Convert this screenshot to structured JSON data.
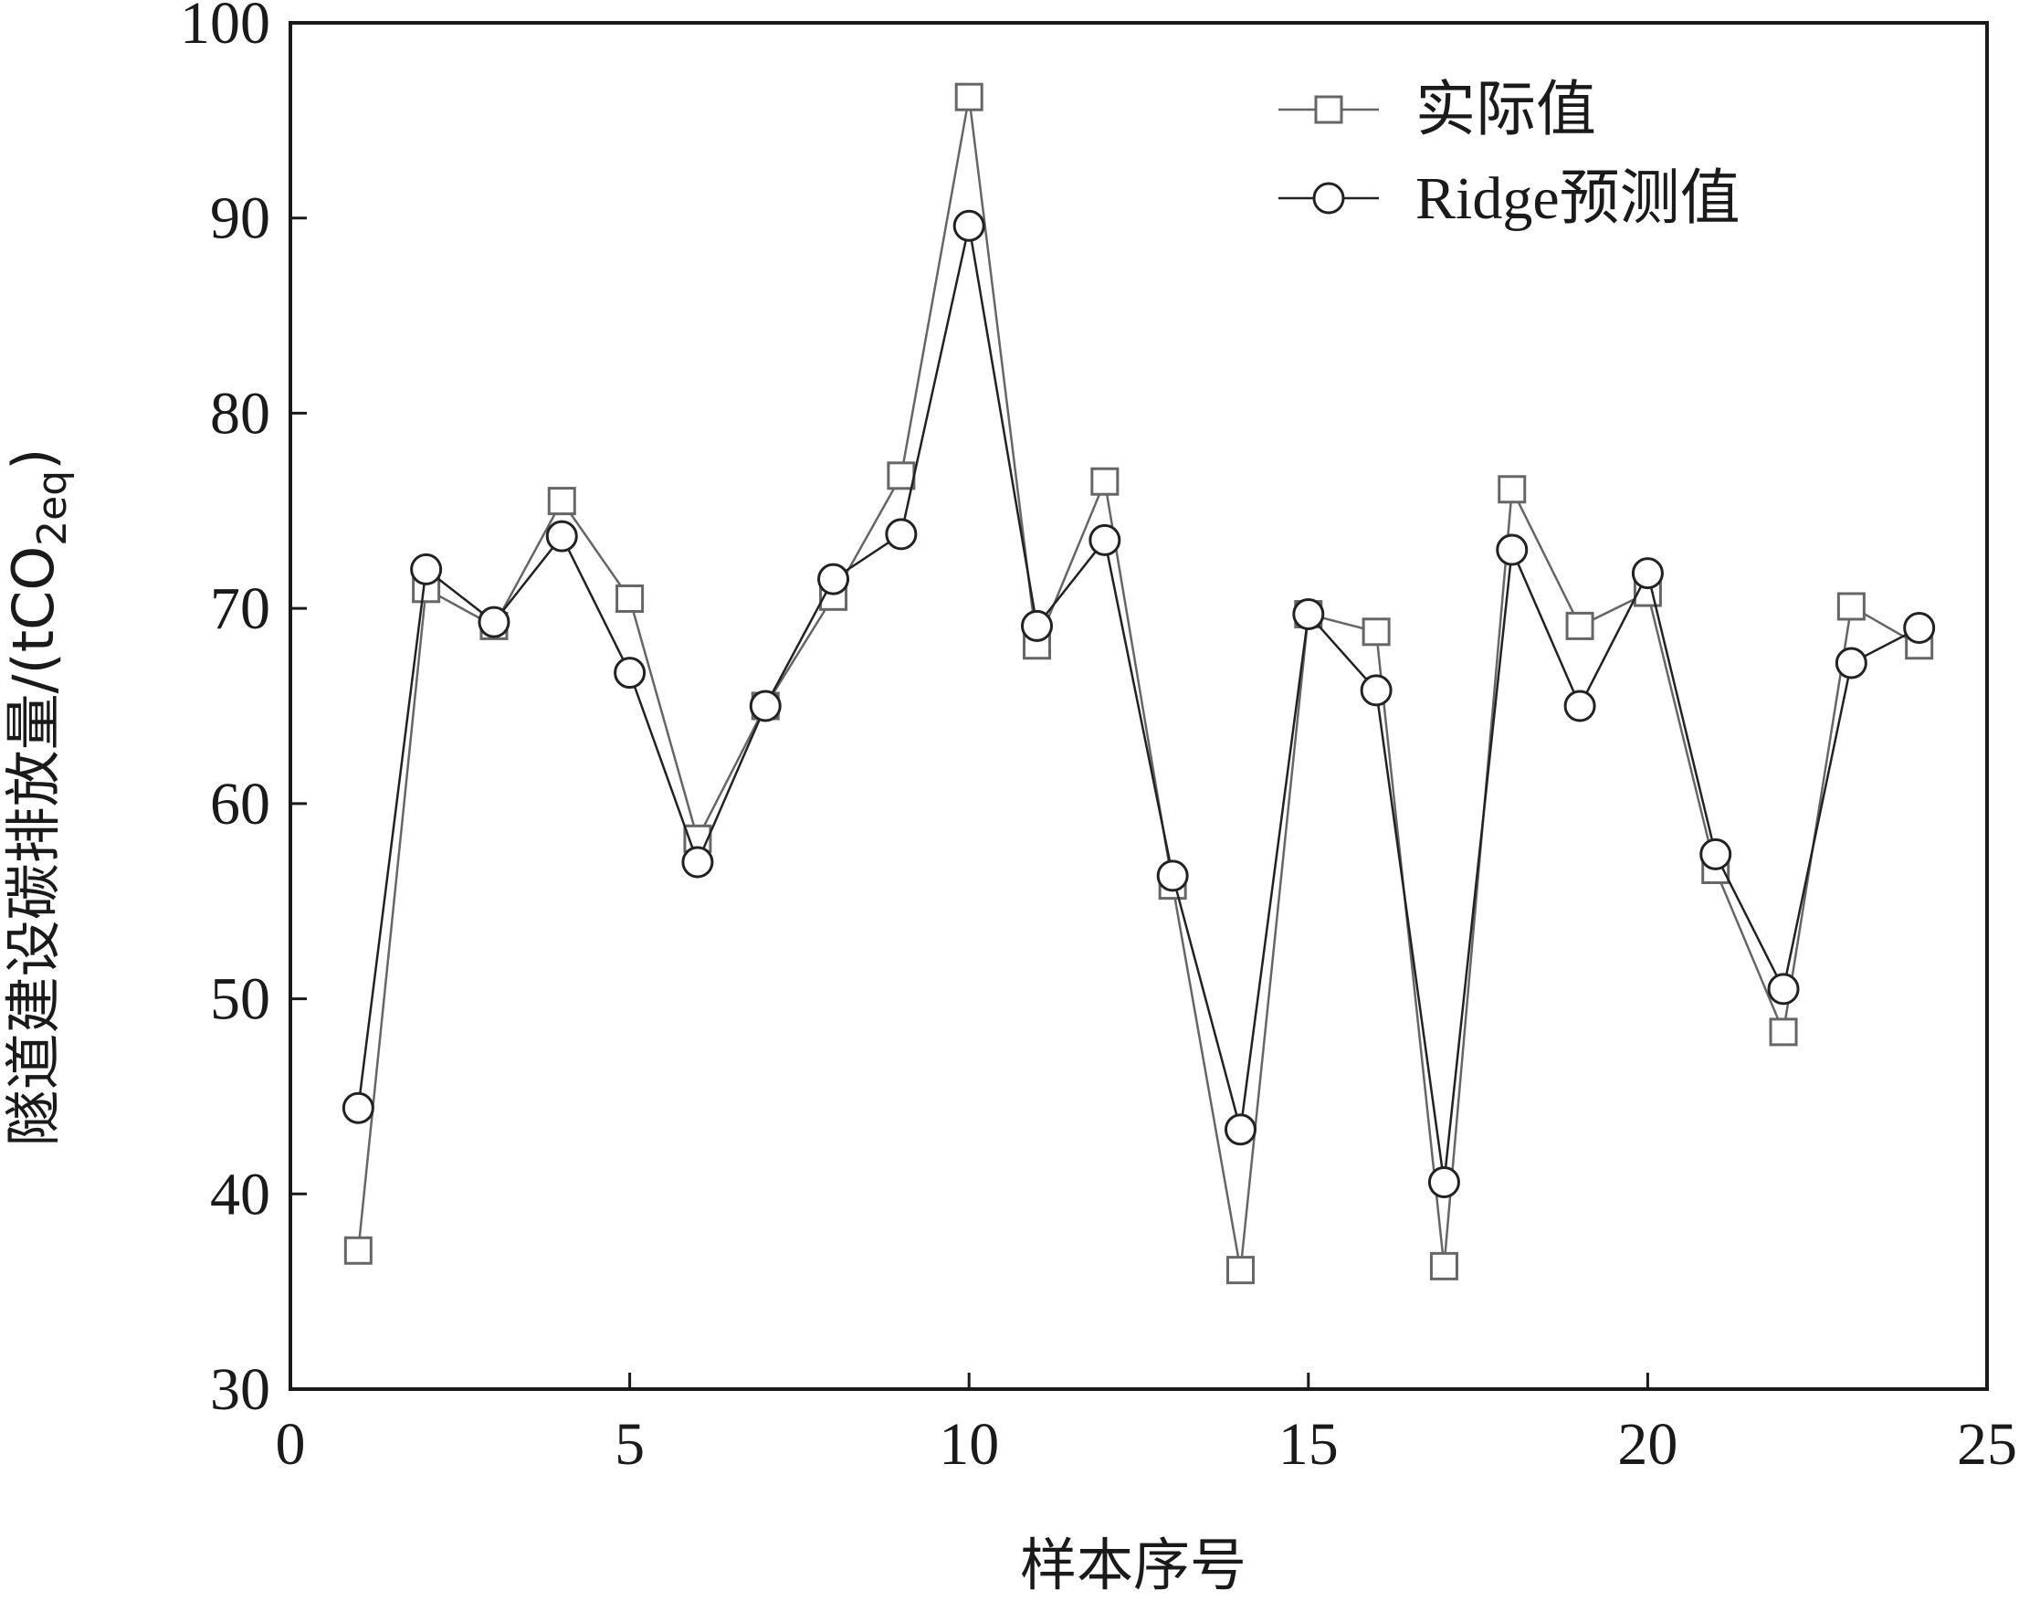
{
  "chart_data": {
    "type": "line",
    "title": "",
    "xlabel": "样本序号",
    "ylabel": {
      "main": "隧道建设碳排放量/(tCO",
      "subscript": "2eq",
      "closing": ")"
    },
    "xlim": [
      0,
      25
    ],
    "ylim": [
      30,
      100
    ],
    "x_ticks": [
      0,
      5,
      10,
      15,
      20,
      25
    ],
    "y_ticks": [
      30,
      40,
      50,
      60,
      70,
      80,
      90,
      100
    ],
    "grid": false,
    "legend_position": "top-right",
    "x": [
      1,
      2,
      3,
      4,
      5,
      6,
      7,
      8,
      9,
      10,
      11,
      12,
      13,
      14,
      15,
      16,
      17,
      18,
      19,
      20,
      21,
      22,
      23,
      24
    ],
    "series": [
      {
        "name": "实际值",
        "marker": "square",
        "color": "#666666",
        "values": [
          37.1,
          71.0,
          69.1,
          75.5,
          70.5,
          58.2,
          65.0,
          70.6,
          76.8,
          96.2,
          68.1,
          76.5,
          55.8,
          36.1,
          69.7,
          68.8,
          36.3,
          76.1,
          69.1,
          70.8,
          56.6,
          48.3,
          70.1,
          68.1
        ]
      },
      {
        "name": "Ridge预测值",
        "marker": "circle",
        "color": "#222222",
        "values": [
          44.4,
          72.0,
          69.3,
          73.7,
          66.7,
          57.0,
          65.0,
          71.5,
          73.8,
          89.6,
          69.1,
          73.5,
          56.3,
          43.3,
          69.7,
          65.8,
          40.6,
          73.0,
          65.0,
          71.8,
          57.4,
          50.5,
          67.2,
          69.0
        ]
      }
    ]
  }
}
